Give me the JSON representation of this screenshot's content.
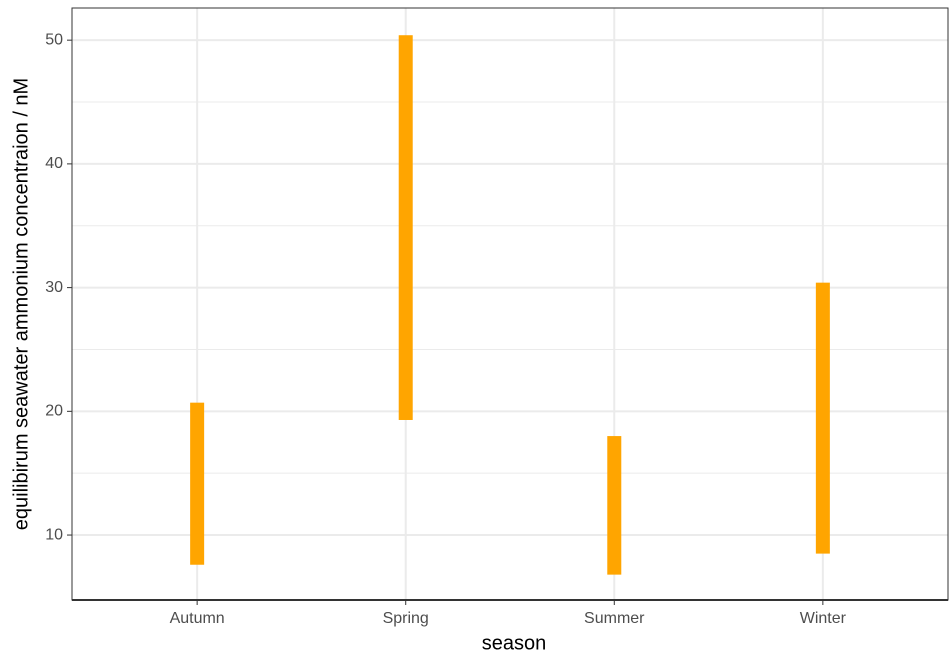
{
  "chart_data": {
    "type": "range",
    "x_label": "season",
    "y_label": "equilibirum seawater ammonium concentraion / nM",
    "categories": [
      "Autumn",
      "Spring",
      "Summer",
      "Winter"
    ],
    "low": [
      7.6,
      19.3,
      6.8,
      8.5
    ],
    "high": [
      20.7,
      50.4,
      18.0,
      30.4
    ],
    "color": "#ffa500",
    "ylim": [
      4.75,
      52.6
    ],
    "yticks": [
      10,
      20,
      30,
      40,
      50
    ],
    "y_minor_grid": [
      15,
      25,
      35,
      45
    ],
    "grid": true
  }
}
